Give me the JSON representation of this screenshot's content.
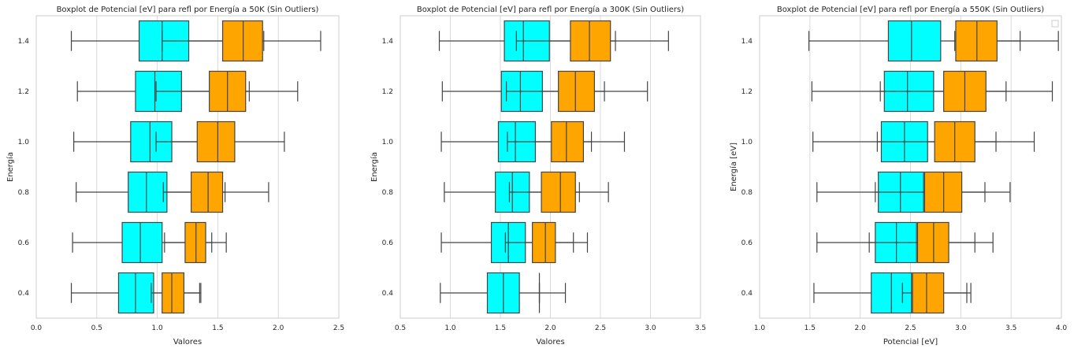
{
  "colors": {
    "cyan": "#00ffff",
    "orange": "#ffa500",
    "line": "#444444",
    "grid": "#d9d9d9",
    "frame": "#cccccc"
  },
  "chart_data": [
    {
      "type": "boxplot",
      "title": "Boxplot de Potencial [eV] para refl por Energía a 50K (Sin Outliers)",
      "xlabel": "Valores",
      "ylabel": "Energía",
      "xlim": [
        0.0,
        2.5
      ],
      "xticks": [
        "0.0",
        "0.5",
        "1.0",
        "1.5",
        "2.0",
        "2.5"
      ],
      "yticks": [
        "1.4",
        "1.2",
        "1.0",
        "0.8",
        "0.6",
        "0.4"
      ],
      "grid": "vertical",
      "legend": "",
      "boxes": [
        {
          "cat": "1.4",
          "color": "cyan",
          "whislo": 0.29,
          "q1": 0.85,
          "med": 1.04,
          "q3": 1.26,
          "whishi": 1.88
        },
        {
          "cat": "1.4",
          "color": "orange",
          "whislo": 1.04,
          "q1": 1.54,
          "med": 1.71,
          "q3": 1.87,
          "whishi": 2.35
        },
        {
          "cat": "1.2",
          "color": "cyan",
          "whislo": 0.34,
          "q1": 0.82,
          "med": 0.98,
          "q3": 1.2,
          "whishi": 1.76
        },
        {
          "cat": "1.2",
          "color": "orange",
          "whislo": 0.99,
          "q1": 1.43,
          "med": 1.58,
          "q3": 1.73,
          "whishi": 2.16
        },
        {
          "cat": "1.0",
          "color": "cyan",
          "whislo": 0.31,
          "q1": 0.78,
          "med": 0.94,
          "q3": 1.12,
          "whishi": 1.62
        },
        {
          "cat": "1.0",
          "color": "orange",
          "whislo": 0.99,
          "q1": 1.33,
          "med": 1.5,
          "q3": 1.64,
          "whishi": 2.05
        },
        {
          "cat": "0.8",
          "color": "cyan",
          "whislo": 0.33,
          "q1": 0.76,
          "med": 0.91,
          "q3": 1.08,
          "whishi": 1.56
        },
        {
          "cat": "0.8",
          "color": "orange",
          "whislo": 1.05,
          "q1": 1.28,
          "med": 1.42,
          "q3": 1.54,
          "whishi": 1.92
        },
        {
          "cat": "0.6",
          "color": "cyan",
          "whislo": 0.3,
          "q1": 0.71,
          "med": 0.86,
          "q3": 1.04,
          "whishi": 1.45
        },
        {
          "cat": "0.6",
          "color": "orange",
          "whislo": 1.06,
          "q1": 1.23,
          "med": 1.32,
          "q3": 1.4,
          "whishi": 1.57
        },
        {
          "cat": "0.4",
          "color": "cyan",
          "whislo": 0.29,
          "q1": 0.68,
          "med": 0.82,
          "q3": 0.97,
          "whishi": 1.36
        },
        {
          "cat": "0.4",
          "color": "orange",
          "whislo": 0.95,
          "q1": 1.04,
          "med": 1.12,
          "q3": 1.22,
          "whishi": 1.35
        }
      ]
    },
    {
      "type": "boxplot",
      "title": "Boxplot de Potencial [eV] para refl por Energía a 300K (Sin Outliers)",
      "xlabel": "Valores",
      "ylabel": "Energía",
      "xlim": [
        0.5,
        3.5
      ],
      "xticks": [
        "0.5",
        "1.0",
        "1.5",
        "2.0",
        "2.5",
        "3.0",
        "3.5"
      ],
      "yticks": [
        "1.4",
        "1.2",
        "1.0",
        "0.8",
        "0.6",
        "0.4"
      ],
      "grid": "vertical",
      "legend": "",
      "boxes": [
        {
          "cat": "1.4",
          "color": "cyan",
          "whislo": 0.89,
          "q1": 1.54,
          "med": 1.73,
          "q3": 1.99,
          "whishi": 2.65
        },
        {
          "cat": "1.4",
          "color": "orange",
          "whislo": 1.66,
          "q1": 2.2,
          "med": 2.39,
          "q3": 2.6,
          "whishi": 3.18
        },
        {
          "cat": "1.2",
          "color": "cyan",
          "whislo": 0.92,
          "q1": 1.51,
          "med": 1.7,
          "q3": 1.92,
          "whishi": 2.54
        },
        {
          "cat": "1.2",
          "color": "orange",
          "whislo": 1.56,
          "q1": 2.08,
          "med": 2.25,
          "q3": 2.44,
          "whishi": 2.97
        },
        {
          "cat": "1.0",
          "color": "cyan",
          "whislo": 0.91,
          "q1": 1.48,
          "med": 1.65,
          "q3": 1.85,
          "whishi": 2.41
        },
        {
          "cat": "1.0",
          "color": "orange",
          "whislo": 1.57,
          "q1": 2.01,
          "med": 2.16,
          "q3": 2.33,
          "whishi": 2.74
        },
        {
          "cat": "0.8",
          "color": "cyan",
          "whislo": 0.94,
          "q1": 1.45,
          "med": 1.62,
          "q3": 1.79,
          "whishi": 2.29
        },
        {
          "cat": "0.8",
          "color": "orange",
          "whislo": 1.59,
          "q1": 1.91,
          "med": 2.1,
          "q3": 2.25,
          "whishi": 2.58
        },
        {
          "cat": "0.6",
          "color": "cyan",
          "whislo": 0.91,
          "q1": 1.41,
          "med": 1.58,
          "q3": 1.75,
          "whishi": 2.23
        },
        {
          "cat": "0.6",
          "color": "orange",
          "whislo": 1.55,
          "q1": 1.82,
          "med": 1.95,
          "q3": 2.05,
          "whishi": 2.37
        },
        {
          "cat": "0.4",
          "color": "cyan",
          "whislo": 0.9,
          "q1": 1.37,
          "med": 1.53,
          "q3": 1.69,
          "whishi": 2.15
        },
        {
          "cat": "0.4",
          "color": "orange",
          "whislo": 1.89,
          "q1": 1.89,
          "med": 1.89,
          "q3": 1.89,
          "whishi": 1.89
        }
      ]
    },
    {
      "type": "boxplot",
      "title": "Boxplot de Potencial [eV] para refl por Energía a 550K (Sin Outliers)",
      "xlabel": "Potencial [eV]",
      "ylabel": "Energía [eV]",
      "xlim": [
        1.0,
        4.0
      ],
      "xticks": [
        "1.0",
        "1.5",
        "2.0",
        "2.5",
        "3.0",
        "3.5",
        "4.0"
      ],
      "yticks": [
        "1.4",
        "1.2",
        "1.0",
        "0.8",
        "0.6",
        "0.4"
      ],
      "grid": "vertical",
      "legend": "top-right (empty)",
      "boxes": [
        {
          "cat": "1.4",
          "color": "cyan",
          "whislo": 1.49,
          "q1": 2.28,
          "med": 2.51,
          "q3": 2.8,
          "whishi": 3.59
        },
        {
          "cat": "1.4",
          "color": "orange",
          "whislo": 2.94,
          "q1": 2.95,
          "med": 3.16,
          "q3": 3.36,
          "whishi": 3.97
        },
        {
          "cat": "1.2",
          "color": "cyan",
          "whislo": 1.52,
          "q1": 2.24,
          "med": 2.47,
          "q3": 2.73,
          "whishi": 3.45
        },
        {
          "cat": "1.2",
          "color": "orange",
          "whislo": 2.2,
          "q1": 2.83,
          "med": 3.04,
          "q3": 3.25,
          "whishi": 3.91
        },
        {
          "cat": "1.0",
          "color": "cyan",
          "whislo": 1.53,
          "q1": 2.21,
          "med": 2.44,
          "q3": 2.67,
          "whishi": 3.35
        },
        {
          "cat": "1.0",
          "color": "orange",
          "whislo": 2.17,
          "q1": 2.74,
          "med": 2.94,
          "q3": 3.14,
          "whishi": 3.73
        },
        {
          "cat": "0.8",
          "color": "cyan",
          "whislo": 1.57,
          "q1": 2.18,
          "med": 2.4,
          "q3": 2.63,
          "whishi": 3.24
        },
        {
          "cat": "0.8",
          "color": "orange",
          "whislo": 2.15,
          "q1": 2.64,
          "med": 2.83,
          "q3": 3.01,
          "whishi": 3.49
        },
        {
          "cat": "0.6",
          "color": "cyan",
          "whislo": 1.57,
          "q1": 2.15,
          "med": 2.36,
          "q3": 2.56,
          "whishi": 3.14
        },
        {
          "cat": "0.6",
          "color": "orange",
          "whislo": 2.09,
          "q1": 2.57,
          "med": 2.73,
          "q3": 2.88,
          "whishi": 3.32
        },
        {
          "cat": "0.4",
          "color": "cyan",
          "whislo": 1.54,
          "q1": 2.11,
          "med": 2.31,
          "q3": 2.51,
          "whishi": 3.06
        },
        {
          "cat": "0.4",
          "color": "orange",
          "whislo": 2.42,
          "q1": 2.52,
          "med": 2.66,
          "q3": 2.83,
          "whishi": 3.1
        }
      ]
    }
  ]
}
